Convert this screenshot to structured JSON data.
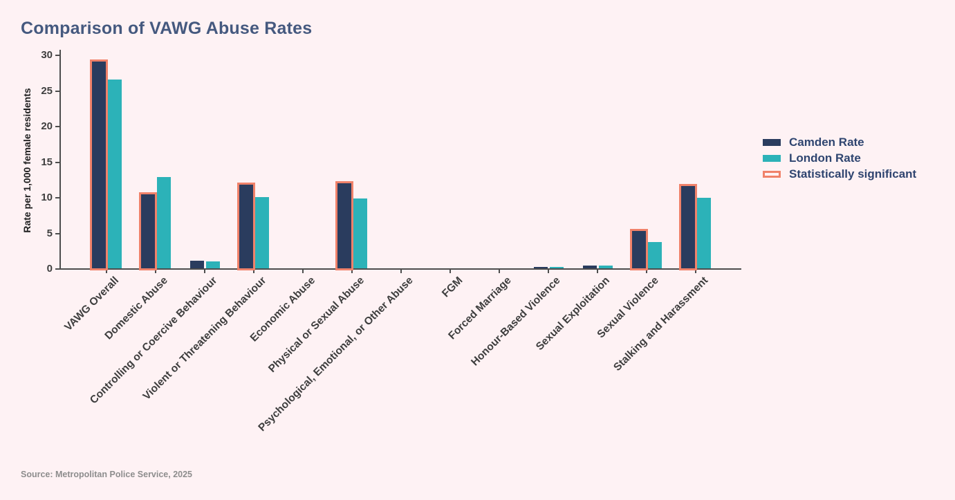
{
  "page": {
    "title": "Comparison of VAWG Abuse Rates",
    "source": "Source: Metropolitan Police Service, 2025",
    "background": "#fef2f4"
  },
  "colors": {
    "camden": "#2a3c5e",
    "london": "#2cb2b8",
    "significant_outline": "#f0826a",
    "title_text": "#45597f",
    "legend_text": "#2f4570",
    "axis": "#4d4d4d",
    "tick_label_text": "#3e3e3e",
    "source_text": "#8d8d8d"
  },
  "legend": [
    {
      "label": "Camden Rate",
      "swatch": "camden-filled"
    },
    {
      "label": "London Rate",
      "swatch": "london-filled"
    },
    {
      "label": "Statistically significant",
      "swatch": "significant-outline"
    }
  ],
  "chart_data": {
    "type": "bar",
    "title": "Comparison of VAWG Abuse Rates",
    "xlabel": "",
    "ylabel": "Rate per 1,000 female residents",
    "ylim": [
      0,
      30
    ],
    "yticks": [
      0,
      5,
      10,
      15,
      20,
      25,
      30
    ],
    "grid": false,
    "legend_position": "right",
    "categories": [
      "VAWG Overall",
      "Domestic Abuse",
      "Controlling or Coercive Behaviour",
      "Violent or Threatening Behaviour",
      "Economic Abuse",
      "Physical or Sexual Abuse",
      "Psychological, Emotional, or Other Abuse",
      "FGM",
      "Forced Marriage",
      "Honour-Based Violence",
      "Sexual Exploitation",
      "Sexual Violence",
      "Stalking and Harassment"
    ],
    "series": [
      {
        "name": "Camden Rate",
        "values": [
          29.0,
          10.4,
          1.1,
          11.7,
          0,
          11.9,
          0,
          0,
          0,
          0.2,
          0.4,
          5.2,
          11.6
        ]
      },
      {
        "name": "London Rate",
        "values": [
          26.5,
          12.8,
          1.0,
          10.0,
          0,
          9.8,
          0,
          0,
          0,
          0.15,
          0.35,
          3.7,
          9.9
        ]
      }
    ],
    "camden_statistically_significant": [
      true,
      true,
      false,
      true,
      false,
      true,
      false,
      false,
      false,
      false,
      false,
      true,
      true
    ],
    "source": "Source: Metropolitan Police Service, 2025"
  }
}
